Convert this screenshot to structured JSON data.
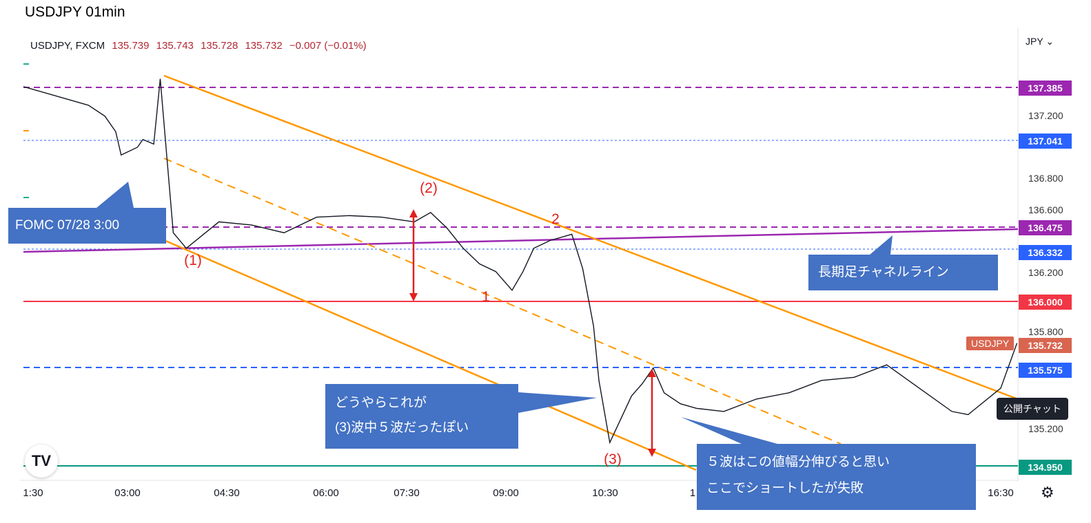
{
  "header": {
    "title": "USDJPY 01min"
  },
  "legend": {
    "symbol": "USDJPY, FXCM",
    "open": "135.739",
    "high": "135.743",
    "low": "135.728",
    "close": "135.732",
    "change": "−0.007 (−0.01%)"
  },
  "currency_button": "JPY",
  "price_axis": {
    "ticks": [
      "137.200",
      "136.800",
      "136.600",
      "136.200",
      "135.800",
      "135.200"
    ],
    "tags": [
      {
        "label": "137.385",
        "color": "#9c27b0"
      },
      {
        "label": "137.041",
        "color": "#2962ff"
      },
      {
        "label": "136.475",
        "color": "#9c27b0"
      },
      {
        "label": "136.332",
        "color": "#2962ff"
      },
      {
        "label": "136.000",
        "color": "#f23645"
      },
      {
        "label": "135.732",
        "color": "#d9654f"
      },
      {
        "label": "135.575",
        "color": "#2962ff"
      },
      {
        "label": "134.950",
        "color": "#089981"
      }
    ]
  },
  "time_axis": [
    "1:30",
    "03:00",
    "04:30",
    "06:00",
    "07:30",
    "09:00",
    "10:30",
    "1",
    "16:30"
  ],
  "symbol_badge": "USDJPY",
  "public_chat_button": "公開チャット",
  "tv_logo": "TV",
  "settings_icon": "gear-icon",
  "callouts": {
    "fomc": "FOMC 07/28 3:00",
    "long_channel": "長期足チャネルライン",
    "wave_line1": "どうやらこれが",
    "wave_line2": "(3)波中５波だったぽい",
    "five_line1": "５波はこの値幅分伸びると思い",
    "five_line2": "ここでショートしたが失敗"
  },
  "wave_labels": {
    "w1": "(1)",
    "w2": "(2)",
    "w3": "(3)",
    "sub1": "1",
    "sub2": "2"
  },
  "chart_data": {
    "type": "line",
    "title": "USDJPY 01min",
    "ylim": [
      134.9,
      137.6
    ],
    "xlim": [
      "01:30",
      "16:45"
    ],
    "time_ticks": [
      "1:30",
      "03:00",
      "04:30",
      "06:00",
      "07:30",
      "09:00",
      "10:30",
      "1",
      "16:30"
    ],
    "series": [
      {
        "name": "USDJPY",
        "x": [
          "01:30",
          "02:00",
          "02:30",
          "02:45",
          "02:55",
          "03:00",
          "03:15",
          "03:20",
          "03:30",
          "03:36",
          "03:48",
          "04:00",
          "04:30",
          "05:00",
          "05:30",
          "06:00",
          "06:30",
          "07:00",
          "07:30",
          "07:45",
          "08:00",
          "08:15",
          "08:30",
          "08:45",
          "09:00",
          "09:10",
          "09:20",
          "09:35",
          "09:55",
          "10:05",
          "10:15",
          "10:20",
          "10:30",
          "10:40",
          "10:50",
          "11:00",
          "11:10",
          "11:20",
          "11:35",
          "11:50",
          "12:15",
          "12:45",
          "13:15",
          "13:45",
          "14:15",
          "14:45",
          "15:15",
          "15:45",
          "16:00",
          "16:30",
          "16:45"
        ],
        "values": [
          137.39,
          137.33,
          137.27,
          137.2,
          137.1,
          136.95,
          137.0,
          137.05,
          137.02,
          137.44,
          136.45,
          136.35,
          136.52,
          136.5,
          136.45,
          136.55,
          136.56,
          136.55,
          136.52,
          136.58,
          136.48,
          136.35,
          136.25,
          136.2,
          136.08,
          136.2,
          136.35,
          136.4,
          136.44,
          136.22,
          135.85,
          135.5,
          135.1,
          135.25,
          135.4,
          135.48,
          135.58,
          135.42,
          135.35,
          135.32,
          135.3,
          135.38,
          135.42,
          135.5,
          135.52,
          135.6,
          135.45,
          135.3,
          135.28,
          135.45,
          135.74
        ]
      }
    ],
    "horizontal_levels": [
      137.385,
      137.041,
      136.475,
      136.332,
      136.0,
      135.575,
      134.95
    ],
    "last_price": 135.732,
    "grid": true
  }
}
